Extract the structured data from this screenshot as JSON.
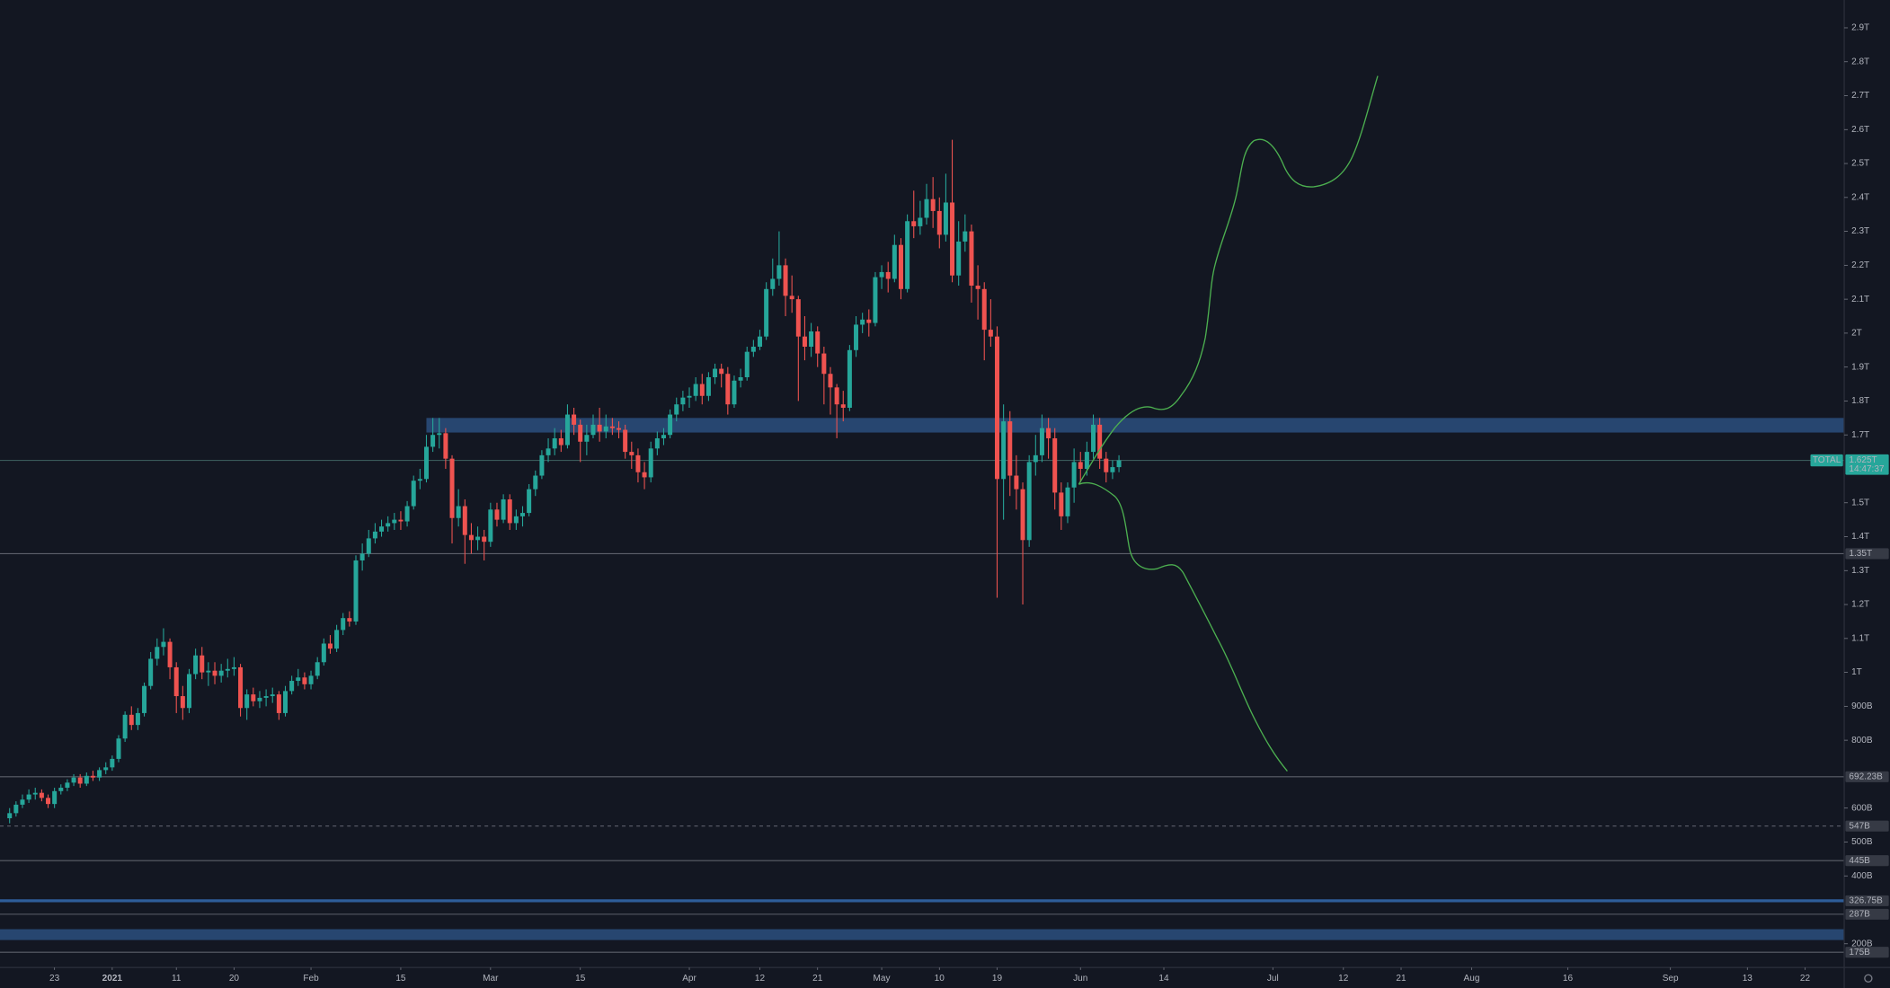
{
  "chart_data": {
    "type": "candlestick",
    "symbol": "TOTAL",
    "last_price": {
      "value": 1625,
      "label": "1.625T"
    },
    "countdown": "14:47:37",
    "up_color": "#26a69a",
    "down_color": "#ef5350",
    "xlim": [
      -8.5,
      279.1
    ],
    "ylim": [
      130,
      2982
    ],
    "x": [
      -7,
      -6,
      -5,
      -4,
      -3,
      -2,
      -1,
      0,
      1,
      2,
      3,
      4,
      5,
      6,
      7,
      8,
      9,
      10,
      11,
      12,
      13,
      14,
      15,
      16,
      17,
      18,
      19,
      20,
      21,
      22,
      23,
      24,
      25,
      26,
      27,
      28,
      29,
      30,
      31,
      32,
      33,
      34,
      35,
      36,
      37,
      38,
      39,
      40,
      41,
      42,
      43,
      44,
      45,
      46,
      47,
      48,
      49,
      50,
      51,
      52,
      53,
      54,
      55,
      56,
      57,
      58,
      59,
      60,
      61,
      62,
      63,
      64,
      65,
      66,
      67,
      68,
      69,
      70,
      71,
      72,
      73,
      74,
      75,
      76,
      77,
      78,
      79,
      80,
      81,
      82,
      83,
      84,
      85,
      86,
      87,
      88,
      89,
      90,
      91,
      92,
      93,
      94,
      95,
      96,
      97,
      98,
      99,
      100,
      101,
      102,
      103,
      104,
      105,
      106,
      107,
      108,
      109,
      110,
      111,
      112,
      113,
      114,
      115,
      116,
      117,
      118,
      119,
      120,
      121,
      122,
      123,
      124,
      125,
      126,
      127,
      128,
      129,
      130,
      131,
      132,
      133,
      134,
      135,
      136,
      137,
      138,
      139,
      140,
      141,
      142,
      143,
      144,
      145,
      146,
      147,
      148,
      149,
      150,
      151,
      152,
      153,
      154,
      155,
      156,
      157,
      158,
      159,
      160,
      161,
      162,
      163,
      164,
      165,
      166
    ],
    "open": [
      570,
      585,
      610,
      625,
      640,
      645,
      630,
      612,
      650,
      660,
      675,
      690,
      672,
      695,
      690,
      712,
      720,
      745,
      805,
      875,
      845,
      880,
      960,
      1040,
      1075,
      1090,
      1015,
      930,
      895,
      995,
      1050,
      1000,
      1005,
      990,
      1005,
      1010,
      1015,
      895,
      935,
      915,
      925,
      930,
      935,
      880,
      945,
      975,
      985,
      965,
      990,
      1030,
      1085,
      1070,
      1125,
      1160,
      1150,
      1330,
      1350,
      1395,
      1415,
      1430,
      1440,
      1450,
      1445,
      1490,
      1565,
      1570,
      1665,
      1700,
      1705,
      1630,
      1455,
      1490,
      1405,
      1390,
      1400,
      1385,
      1480,
      1450,
      1510,
      1440,
      1460,
      1470,
      1540,
      1580,
      1640,
      1660,
      1690,
      1670,
      1760,
      1730,
      1680,
      1700,
      1730,
      1710,
      1725,
      1720,
      1715,
      1650,
      1640,
      1590,
      1575,
      1660,
      1690,
      1700,
      1760,
      1790,
      1810,
      1815,
      1850,
      1815,
      1870,
      1895,
      1880,
      1790,
      1860,
      1870,
      1945,
      1960,
      1990,
      2130,
      2160,
      2200,
      2110,
      2100,
      1990,
      1960,
      2005,
      1940,
      1880,
      1840,
      1790,
      1780,
      1950,
      2025,
      2040,
      2030,
      2165,
      2180,
      2160,
      2260,
      2130,
      2330,
      2315,
      2340,
      2395,
      2360,
      2290,
      2385,
      2170,
      2270,
      2300,
      2140,
      2130,
      2010,
      1990,
      1570,
      1740,
      1580,
      1540,
      1390,
      1620,
      1640,
      1720,
      1690,
      1530,
      1460,
      1545,
      1620,
      1600,
      1650,
      1730,
      1630,
      1590,
      1605
    ],
    "high": [
      600,
      620,
      640,
      655,
      660,
      655,
      640,
      660,
      670,
      685,
      700,
      700,
      705,
      710,
      720,
      735,
      755,
      815,
      885,
      900,
      895,
      970,
      1060,
      1100,
      1130,
      1100,
      1030,
      960,
      1010,
      1070,
      1075,
      1030,
      1030,
      1025,
      1040,
      1045,
      1025,
      950,
      955,
      945,
      950,
      955,
      945,
      960,
      990,
      1010,
      1000,
      1005,
      1045,
      1100,
      1110,
      1140,
      1175,
      1180,
      1345,
      1380,
      1420,
      1440,
      1450,
      1460,
      1470,
      1475,
      1505,
      1580,
      1600,
      1700,
      1750,
      1750,
      1720,
      1640,
      1540,
      1510,
      1440,
      1430,
      1420,
      1500,
      1500,
      1525,
      1525,
      1480,
      1490,
      1555,
      1595,
      1655,
      1690,
      1720,
      1715,
      1790,
      1780,
      1745,
      1730,
      1760,
      1780,
      1760,
      1750,
      1740,
      1730,
      1680,
      1660,
      1620,
      1680,
      1710,
      1720,
      1775,
      1810,
      1830,
      1840,
      1870,
      1880,
      1885,
      1910,
      1910,
      1900,
      1875,
      1895,
      1960,
      1980,
      2010,
      2150,
      2220,
      2300,
      2220,
      2170,
      2110,
      2050,
      2030,
      2020,
      1960,
      1900,
      1850,
      1830,
      1965,
      2050,
      2060,
      2070,
      2180,
      2200,
      2210,
      2290,
      2280,
      2350,
      2420,
      2390,
      2440,
      2460,
      2400,
      2470,
      2570,
      2330,
      2350,
      2320,
      2200,
      2150,
      2100,
      2020,
      1790,
      1770,
      1640,
      1560,
      1640,
      1700,
      1760,
      1750,
      1720,
      1560,
      1560,
      1660,
      1650,
      1680,
      1760,
      1750,
      1650,
      1625,
      1640
    ],
    "low": [
      555,
      575,
      600,
      615,
      625,
      620,
      600,
      600,
      640,
      650,
      665,
      660,
      665,
      680,
      680,
      700,
      710,
      735,
      795,
      830,
      830,
      870,
      950,
      1020,
      1050,
      980,
      880,
      860,
      880,
      980,
      980,
      960,
      965,
      970,
      985,
      990,
      870,
      860,
      900,
      895,
      900,
      910,
      860,
      870,
      935,
      960,
      950,
      950,
      980,
      1020,
      1055,
      1060,
      1110,
      1135,
      1140,
      1300,
      1340,
      1380,
      1400,
      1415,
      1420,
      1420,
      1430,
      1480,
      1540,
      1560,
      1650,
      1660,
      1600,
      1380,
      1430,
      1320,
      1350,
      1360,
      1330,
      1370,
      1430,
      1440,
      1420,
      1420,
      1430,
      1460,
      1520,
      1570,
      1620,
      1640,
      1650,
      1660,
      1700,
      1620,
      1640,
      1690,
      1680,
      1690,
      1700,
      1690,
      1630,
      1600,
      1560,
      1540,
      1560,
      1640,
      1670,
      1690,
      1740,
      1770,
      1780,
      1800,
      1790,
      1800,
      1850,
      1840,
      1760,
      1780,
      1840,
      1860,
      1930,
      1950,
      1980,
      2110,
      2140,
      2050,
      2060,
      1800,
      1920,
      1930,
      1900,
      1790,
      1760,
      1690,
      1740,
      1770,
      1930,
      2000,
      1990,
      2020,
      2130,
      2120,
      2150,
      2100,
      2120,
      2280,
      2290,
      2320,
      2310,
      2250,
      2270,
      2150,
      2140,
      2240,
      2090,
      2040,
      1920,
      1960,
      1220,
      1450,
      1520,
      1480,
      1200,
      1370,
      1580,
      1620,
      1630,
      1480,
      1420,
      1440,
      1500,
      1560,
      1580,
      1630,
      1600,
      1560,
      1570,
      1590
    ],
    "close": [
      585,
      610,
      625,
      640,
      645,
      630,
      612,
      650,
      660,
      675,
      690,
      672,
      695,
      690,
      712,
      720,
      745,
      805,
      875,
      845,
      880,
      960,
      1040,
      1075,
      1090,
      1015,
      930,
      895,
      995,
      1050,
      1000,
      1005,
      990,
      1005,
      1010,
      1015,
      895,
      935,
      915,
      925,
      930,
      935,
      880,
      945,
      975,
      985,
      965,
      990,
      1030,
      1085,
      1070,
      1125,
      1160,
      1150,
      1330,
      1350,
      1395,
      1415,
      1430,
      1440,
      1450,
      1445,
      1490,
      1565,
      1570,
      1665,
      1700,
      1705,
      1630,
      1455,
      1490,
      1405,
      1390,
      1400,
      1385,
      1480,
      1450,
      1510,
      1440,
      1460,
      1470,
      1540,
      1580,
      1640,
      1660,
      1690,
      1670,
      1760,
      1730,
      1680,
      1700,
      1730,
      1710,
      1725,
      1720,
      1715,
      1650,
      1640,
      1590,
      1575,
      1660,
      1690,
      1700,
      1760,
      1790,
      1810,
      1815,
      1850,
      1815,
      1870,
      1895,
      1880,
      1790,
      1860,
      1870,
      1945,
      1960,
      1990,
      2130,
      2160,
      2200,
      2110,
      2100,
      1990,
      1960,
      2005,
      1940,
      1880,
      1840,
      1790,
      1780,
      1950,
      2025,
      2040,
      2030,
      2165,
      2180,
      2160,
      2260,
      2130,
      2330,
      2315,
      2340,
      2395,
      2360,
      2290,
      2385,
      2170,
      2270,
      2300,
      2140,
      2130,
      2010,
      1990,
      1570,
      1740,
      1580,
      1540,
      1390,
      1620,
      1640,
      1720,
      1690,
      1530,
      1460,
      1545,
      1620,
      1600,
      1650,
      1730,
      1630,
      1590,
      1605,
      1625
    ],
    "xticks": [
      {
        "value": 0,
        "label": "23"
      },
      {
        "value": 9,
        "label": "2021"
      },
      {
        "value": 19,
        "label": "11"
      },
      {
        "value": 28,
        "label": "20"
      },
      {
        "value": 40,
        "label": "Feb"
      },
      {
        "value": 54,
        "label": "15"
      },
      {
        "value": 68,
        "label": "Mar"
      },
      {
        "value": 82,
        "label": "15"
      },
      {
        "value": 99,
        "label": "Apr"
      },
      {
        "value": 110,
        "label": "12"
      },
      {
        "value": 119,
        "label": "21"
      },
      {
        "value": 129,
        "label": "May"
      },
      {
        "value": 138,
        "label": "10"
      },
      {
        "value": 147,
        "label": "19"
      },
      {
        "value": 160,
        "label": "Jun"
      },
      {
        "value": 173,
        "label": "14"
      },
      {
        "value": 190,
        "label": "Jul"
      },
      {
        "value": 201,
        "label": "12"
      },
      {
        "value": 210,
        "label": "21"
      },
      {
        "value": 221,
        "label": "Aug"
      },
      {
        "value": 236,
        "label": "16"
      },
      {
        "value": 252,
        "label": "Sep"
      },
      {
        "value": 264,
        "label": "13"
      },
      {
        "value": 273,
        "label": "22"
      }
    ],
    "yticks": [
      {
        "value": 2900,
        "label": "2.9T"
      },
      {
        "value": 2800,
        "label": "2.8T"
      },
      {
        "value": 2700,
        "label": "2.7T"
      },
      {
        "value": 2600,
        "label": "2.6T"
      },
      {
        "value": 2500,
        "label": "2.5T"
      },
      {
        "value": 2400,
        "label": "2.4T"
      },
      {
        "value": 2300,
        "label": "2.3T"
      },
      {
        "value": 2200,
        "label": "2.2T"
      },
      {
        "value": 2100,
        "label": "2.1T"
      },
      {
        "value": 2000,
        "label": "2T"
      },
      {
        "value": 1900,
        "label": "1.9T"
      },
      {
        "value": 1800,
        "label": "1.8T"
      },
      {
        "value": 1700,
        "label": "1.7T"
      },
      {
        "value": 1500,
        "label": "1.5T"
      },
      {
        "value": 1400,
        "label": "1.4T"
      },
      {
        "value": 1300,
        "label": "1.3T"
      },
      {
        "value": 1200,
        "label": "1.2T"
      },
      {
        "value": 1100,
        "label": "1.1T"
      },
      {
        "value": 1000,
        "label": "1T"
      },
      {
        "value": 900,
        "label": "900B"
      },
      {
        "value": 800,
        "label": "800B"
      },
      {
        "value": 600,
        "label": "600B"
      },
      {
        "value": 500,
        "label": "500B"
      },
      {
        "value": 400,
        "label": "400B"
      },
      {
        "value": 200,
        "label": "200B"
      }
    ],
    "levels": [
      {
        "value": 1350,
        "label": "1.35T"
      },
      {
        "value": 692.23,
        "label": "692.23B"
      },
      {
        "value": 547,
        "label": "547B",
        "dashed": true
      },
      {
        "value": 445,
        "label": "445B"
      },
      {
        "value": 326.75,
        "label": "326.75B",
        "color": "#2e5d99"
      },
      {
        "value": 287,
        "label": "287B"
      },
      {
        "value": 175,
        "label": "175B"
      }
    ],
    "zones": [
      {
        "low": 1707,
        "high": 1750,
        "start": 58,
        "color": "#2b4f7e"
      },
      {
        "low": 211,
        "high": 243,
        "start": -8.5,
        "color": "#2b4f7e"
      }
    ]
  }
}
